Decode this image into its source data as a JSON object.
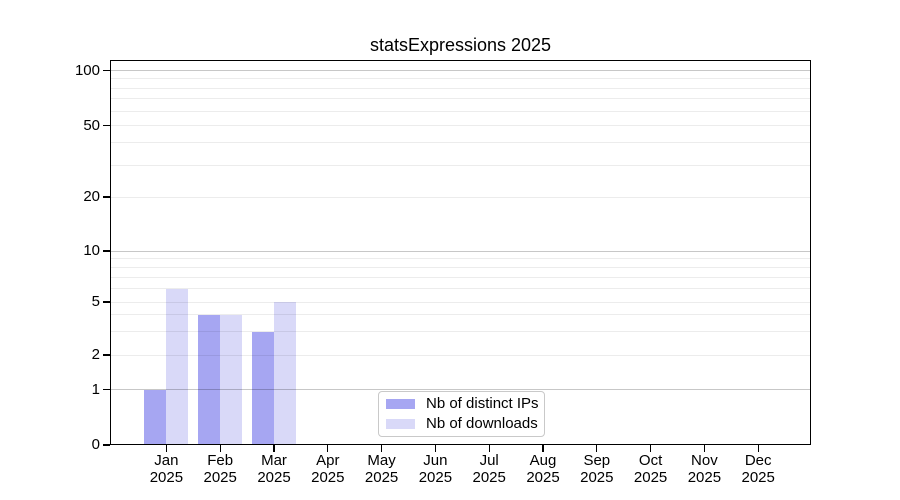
{
  "chart_data": {
    "type": "bar",
    "title": "statsExpressions 2025",
    "categories": [
      "Jan",
      "Feb",
      "Mar",
      "Apr",
      "May",
      "Jun",
      "Jul",
      "Aug",
      "Sep",
      "Oct",
      "Nov",
      "Dec"
    ],
    "x_year_label": "2025",
    "series": [
      {
        "name": "Nb of distinct IPs",
        "color": "#a6a6f2",
        "values": [
          1,
          4,
          3,
          0,
          0,
          0,
          0,
          0,
          0,
          0,
          0,
          0
        ]
      },
      {
        "name": "Nb of downloads",
        "color": "#d9d9f8",
        "values": [
          6,
          4,
          5,
          0,
          0,
          0,
          0,
          0,
          0,
          0,
          0,
          0
        ]
      }
    ],
    "xlabel": "",
    "ylabel": "",
    "ylim": [
      0,
      100
    ],
    "yscale": "log-like with linear zero segment",
    "yticks": [
      0,
      1,
      2,
      5,
      10,
      20,
      50,
      100
    ],
    "gridlines_major": [
      1,
      10,
      100
    ],
    "gridlines_minor": [
      2,
      3,
      4,
      5,
      6,
      7,
      8,
      9,
      20,
      30,
      40,
      50,
      60,
      70,
      80,
      90
    ],
    "grid": "horizontal only",
    "legend_position": "bottom-center"
  }
}
